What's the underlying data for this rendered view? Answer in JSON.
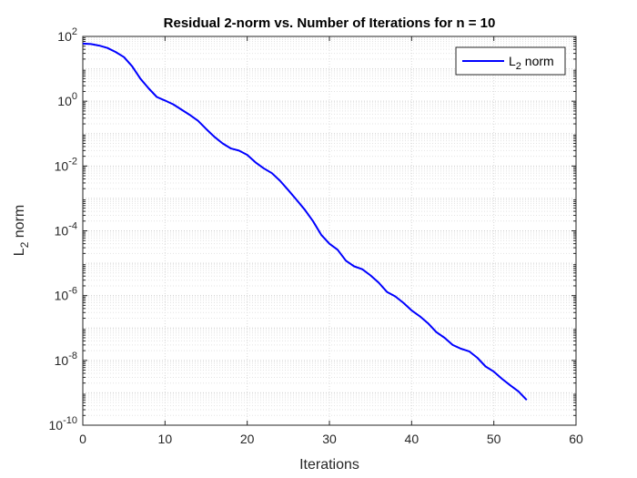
{
  "chart_data": {
    "type": "line",
    "title": "Residual 2-norm vs. Number of Iterations for n = 10",
    "xlabel": "Iterations",
    "ylabel_main": "L",
    "ylabel_sub": "2",
    "ylabel_rest": " norm",
    "xlim": [
      0,
      60
    ],
    "ylim": [
      1e-10,
      100
    ],
    "yscale": "log",
    "xticks": [
      "0",
      "10",
      "20",
      "30",
      "40",
      "50",
      "60"
    ],
    "xtick_values": [
      0,
      10,
      20,
      30,
      40,
      50,
      60
    ],
    "yticks": [
      {
        "base": "10",
        "exp": "2",
        "value": 100
      },
      {
        "base": "10",
        "exp": "0",
        "value": 1
      },
      {
        "base": "10",
        "exp": "-2",
        "value": 0.01
      },
      {
        "base": "10",
        "exp": "-4",
        "value": 0.0001
      },
      {
        "base": "10",
        "exp": "-6",
        "value": 1e-06
      },
      {
        "base": "10",
        "exp": "-8",
        "value": 1e-08
      },
      {
        "base": "10",
        "exp": "-10",
        "value": 1e-10
      }
    ],
    "grid": true,
    "minor_grid": true,
    "legend_position": "top-right",
    "series": [
      {
        "name_main": "L",
        "name_sub": "2",
        "name_rest": " norm",
        "color": "#0000FF",
        "x": [
          0,
          1,
          2,
          3,
          4,
          5,
          6,
          7,
          8,
          9,
          10,
          11,
          12,
          13,
          14,
          15,
          16,
          17,
          18,
          19,
          20,
          21,
          22,
          23,
          24,
          25,
          26,
          27,
          28,
          29,
          30,
          31,
          32,
          33,
          34,
          35,
          36,
          37,
          38,
          39,
          40,
          41,
          42,
          43,
          44,
          45,
          46,
          47,
          48,
          49,
          50,
          51,
          52,
          53,
          54
        ],
        "y": [
          60,
          58,
          52,
          44,
          33,
          23,
          12,
          5,
          2.5,
          1.35,
          1.05,
          0.8,
          0.55,
          0.38,
          0.25,
          0.14,
          0.08,
          0.05,
          0.035,
          0.03,
          0.022,
          0.013,
          0.0085,
          0.006,
          0.0035,
          0.0018,
          0.0009,
          0.00045,
          0.0002,
          7.5e-05,
          4e-05,
          2.6e-05,
          1.2e-05,
          8e-06,
          6.5e-06,
          4.2e-06,
          2.5e-06,
          1.3e-06,
          9.5e-07,
          6e-07,
          3.5e-07,
          2.3e-07,
          1.4e-07,
          7.5e-08,
          5e-08,
          3e-08,
          2.3e-08,
          1.9e-08,
          1.2e-08,
          6.5e-09,
          4.5e-09,
          2.7e-09,
          1.7e-09,
          1.1e-09,
          6e-10
        ]
      }
    ]
  }
}
